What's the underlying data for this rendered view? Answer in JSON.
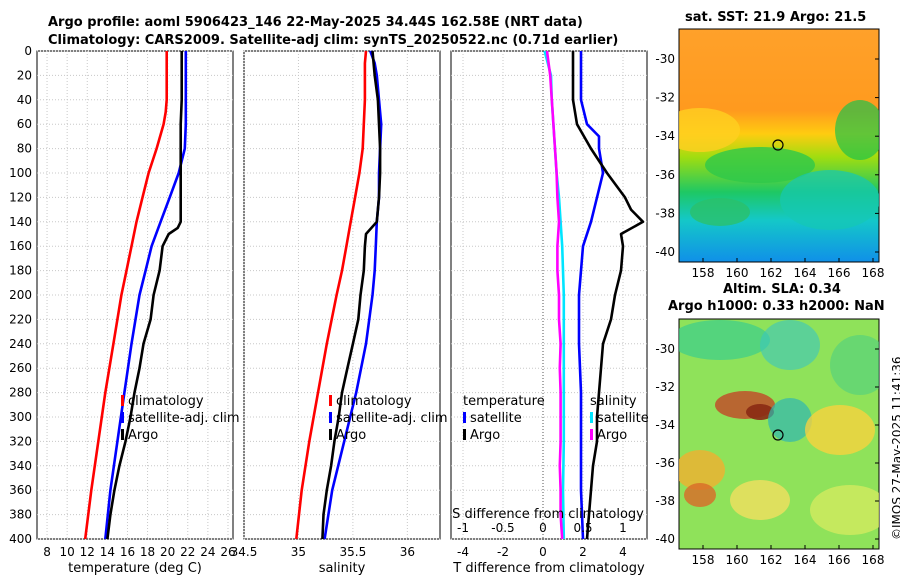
{
  "header": {
    "line1": "Argo profile: aoml 5906423_146 22-May-2025 34.44S 162.58E (NRT data)",
    "line2": "Climatology: CARS2009. Satellite-adj clim: synTS_20250522.nc (0.71d earlier)"
  },
  "maps": {
    "sst_title": "sat. SST: 21.9 Argo: 21.5",
    "sla_title1": "Altim. SLA: 0.34",
    "sla_title2": "Argo h1000: 0.33 h2000: NaN",
    "x_ticks": [
      "158",
      "160",
      "162",
      "164",
      "166",
      "168"
    ],
    "y_ticks": [
      "-30",
      "-32",
      "-34",
      "-36",
      "-38",
      "-40"
    ],
    "argo_lon": 162.58,
    "argo_lat": -34.44
  },
  "stamp": "©IMOS 27-May-2025 11:41:36",
  "colors": {
    "red": "#ff0000",
    "blue": "#0000ff",
    "black": "#000000",
    "cyan": "#00e5ff",
    "magenta": "#ff00ff",
    "grid": "#c8c8c8"
  },
  "chart_data": [
    {
      "type": "line",
      "name": "temperature",
      "xlabel": "temperature (deg C)",
      "ylabel": "",
      "xlim": [
        7,
        26.5
      ],
      "ylim": [
        400,
        0
      ],
      "x_ticks": [
        8,
        10,
        12,
        14,
        16,
        18,
        20,
        22,
        24,
        26
      ],
      "y_ticks": [
        0,
        20,
        40,
        60,
        80,
        100,
        120,
        140,
        160,
        180,
        200,
        220,
        240,
        260,
        280,
        300,
        320,
        340,
        360,
        380,
        400
      ],
      "legend": {
        "labels": [
          "climatology",
          "satellite-adj. clim",
          "Argo"
        ],
        "position": "lower-right"
      },
      "series": [
        {
          "name": "climatology",
          "color": "#ff0000",
          "depth": [
            0,
            20,
            40,
            50,
            60,
            80,
            100,
            120,
            140,
            160,
            180,
            200,
            240,
            280,
            320,
            360,
            400
          ],
          "values": [
            19.9,
            19.9,
            19.9,
            19.8,
            19.6,
            18.9,
            18.1,
            17.5,
            16.9,
            16.4,
            15.9,
            15.4,
            14.6,
            13.8,
            13.1,
            12.4,
            11.8
          ]
        },
        {
          "name": "satellite-adj. clim",
          "color": "#0000ff",
          "depth": [
            0,
            20,
            40,
            60,
            80,
            100,
            120,
            140,
            160,
            180,
            200,
            240,
            280,
            320,
            360,
            400
          ],
          "values": [
            21.8,
            21.8,
            21.8,
            21.8,
            21.7,
            21.1,
            20.2,
            19.3,
            18.4,
            17.8,
            17.2,
            16.4,
            15.7,
            15.0,
            14.3,
            13.8
          ]
        },
        {
          "name": "Argo",
          "color": "#000000",
          "depth": [
            0,
            20,
            40,
            60,
            70,
            80,
            100,
            120,
            140,
            145,
            150,
            160,
            180,
            200,
            220,
            240,
            260,
            280,
            300,
            320,
            340,
            360,
            380,
            400
          ],
          "values": [
            21.4,
            21.4,
            21.4,
            21.3,
            21.3,
            21.3,
            21.3,
            21.3,
            21.3,
            21.0,
            20.1,
            19.5,
            19.2,
            18.6,
            18.3,
            17.6,
            17.2,
            16.7,
            16.3,
            15.8,
            15.2,
            14.7,
            14.3,
            14.0
          ]
        }
      ]
    },
    {
      "type": "line",
      "name": "salinity",
      "xlabel": "salinity",
      "ylabel": "",
      "xlim": [
        34.5,
        36.3
      ],
      "ylim": [
        400,
        0
      ],
      "x_ticks_labeled": [
        "34.5",
        "35",
        "35.5",
        "36"
      ],
      "x_tick_values": [
        34.5,
        35,
        35.5,
        36
      ],
      "legend": {
        "labels": [
          "climatology",
          "satellite-adj. clim",
          "Argo"
        ],
        "position": "lower-right"
      },
      "series": [
        {
          "name": "climatology",
          "color": "#ff0000",
          "depth": [
            0,
            10,
            20,
            40,
            60,
            80,
            100,
            120,
            140,
            160,
            180,
            200,
            240,
            280,
            320,
            360,
            400
          ],
          "values": [
            35.62,
            35.61,
            35.61,
            35.61,
            35.6,
            35.59,
            35.56,
            35.52,
            35.48,
            35.44,
            35.4,
            35.35,
            35.26,
            35.18,
            35.1,
            35.03,
            34.98
          ]
        },
        {
          "name": "satellite-adj. clim",
          "color": "#0000ff",
          "depth": [
            0,
            10,
            20,
            40,
            60,
            80,
            100,
            120,
            140,
            160,
            180,
            200,
            240,
            280,
            320,
            360,
            400
          ],
          "values": [
            35.66,
            35.7,
            35.72,
            35.74,
            35.76,
            35.75,
            35.74,
            35.74,
            35.72,
            35.71,
            35.7,
            35.68,
            35.62,
            35.53,
            35.42,
            35.31,
            35.24
          ]
        },
        {
          "name": "Argo",
          "color": "#000000",
          "depth": [
            0,
            20,
            40,
            60,
            80,
            100,
            120,
            140,
            150,
            160,
            180,
            200,
            220,
            240,
            260,
            280,
            300,
            320,
            340,
            360,
            380,
            400
          ],
          "values": [
            35.68,
            35.7,
            35.73,
            35.74,
            35.75,
            35.75,
            35.74,
            35.72,
            35.62,
            35.61,
            35.6,
            35.57,
            35.55,
            35.5,
            35.45,
            35.4,
            35.37,
            35.33,
            35.3,
            35.26,
            35.23,
            35.22
          ]
        }
      ]
    },
    {
      "type": "line",
      "name": "difference",
      "xlabel": "T difference from climatology",
      "top_xlabel": "S difference from climatology",
      "xlim": [
        -4.6,
        5.2
      ],
      "ylim": [
        400,
        0
      ],
      "x_ticks": [
        -4,
        -2,
        0,
        2,
        4
      ],
      "top_x_ticks": [
        -1,
        -0.5,
        0,
        0.5,
        1
      ],
      "top_x_labels": [
        "-1",
        "-0.5",
        "0",
        "0.5",
        "1"
      ],
      "legend_temperature": {
        "title": "temperature",
        "labels": [
          "satellite",
          "Argo"
        ],
        "position": "lower-left"
      },
      "legend_salinity": {
        "title": "salinity",
        "labels": [
          "satellite",
          "Argo"
        ],
        "position": "lower-right"
      },
      "series": [
        {
          "name": "T satellite",
          "color": "#0000ff",
          "axis": "T",
          "depth": [
            0,
            20,
            40,
            60,
            70,
            80,
            100,
            120,
            140,
            160,
            180,
            200,
            240,
            280,
            320,
            360,
            400
          ],
          "values": [
            1.9,
            1.9,
            1.9,
            2.2,
            2.8,
            2.8,
            3.0,
            2.7,
            2.4,
            2.0,
            1.9,
            1.8,
            1.8,
            1.9,
            1.9,
            1.9,
            2.0
          ]
        },
        {
          "name": "T Argo",
          "color": "#000000",
          "axis": "T",
          "depth": [
            0,
            20,
            40,
            60,
            80,
            100,
            120,
            130,
            140,
            150,
            160,
            180,
            200,
            220,
            240,
            260,
            280,
            300,
            320,
            340,
            360,
            380,
            400
          ],
          "values": [
            1.5,
            1.5,
            1.5,
            1.7,
            2.4,
            3.2,
            4.1,
            4.4,
            5.0,
            3.9,
            4.0,
            3.9,
            3.6,
            3.4,
            3.0,
            2.9,
            2.8,
            2.7,
            2.7,
            2.5,
            2.4,
            2.3,
            2.2
          ]
        },
        {
          "name": "S satellite",
          "color": "#00e5ff",
          "axis": "S",
          "depth": [
            0,
            20,
            40,
            60,
            80,
            100,
            120,
            140,
            160,
            180,
            200,
            240,
            280,
            320,
            360,
            400
          ],
          "values": [
            0.02,
            0.1,
            0.11,
            0.13,
            0.15,
            0.17,
            0.2,
            0.22,
            0.24,
            0.25,
            0.26,
            0.26,
            0.26,
            0.26,
            0.25,
            0.26
          ]
        },
        {
          "name": "S Argo",
          "color": "#ff00ff",
          "axis": "S",
          "depth": [
            0,
            20,
            40,
            60,
            80,
            100,
            120,
            140,
            160,
            180,
            200,
            220,
            240,
            260,
            280,
            300,
            320,
            340,
            360,
            380,
            400
          ],
          "values": [
            0.05,
            0.09,
            0.11,
            0.13,
            0.15,
            0.17,
            0.18,
            0.2,
            0.18,
            0.18,
            0.2,
            0.2,
            0.22,
            0.21,
            0.22,
            0.22,
            0.22,
            0.21,
            0.22,
            0.22,
            0.24
          ]
        }
      ]
    }
  ]
}
